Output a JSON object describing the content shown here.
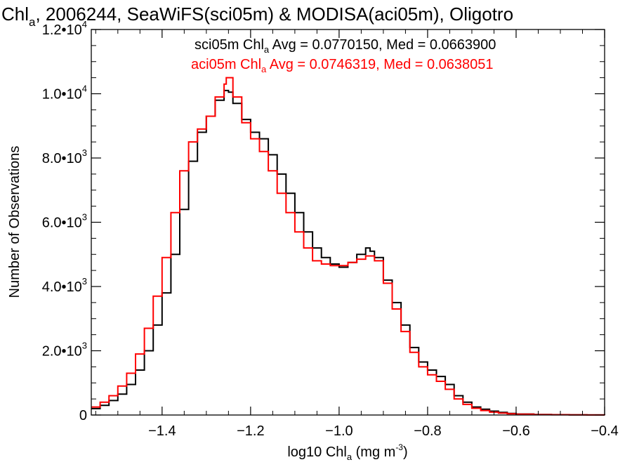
{
  "chart_data": {
    "type": "line",
    "title": {
      "prefix": "Chl",
      "sub": "a",
      "suffix": ", 2006244, SeaWiFS(sci05m) & MODISA(aci05m), Oligotro"
    },
    "xlabel": {
      "prefix": "log10 Chl",
      "sub": "a",
      "mid": " (mg m",
      "sup": "-3",
      "suffix": ")"
    },
    "ylabel": "Number of Observations",
    "xlim": [
      -1.56,
      -0.4
    ],
    "ylim": [
      0,
      12000
    ],
    "x_ticks": [
      -1.4,
      -1.2,
      -1.0,
      -0.8,
      -0.6,
      -0.4
    ],
    "x_tick_labels": [
      "−1.4",
      "−1.2",
      "−1.0",
      "−0.8",
      "−0.6",
      "−0.4"
    ],
    "y_ticks": [
      {
        "value": 0,
        "mant": "0",
        "exp": ""
      },
      {
        "value": 2000,
        "mant": "2.0•10",
        "exp": "3"
      },
      {
        "value": 4000,
        "mant": "4.0•10",
        "exp": "3"
      },
      {
        "value": 6000,
        "mant": "6.0•10",
        "exp": "3"
      },
      {
        "value": 8000,
        "mant": "8.0•10",
        "exp": "3"
      },
      {
        "value": 10000,
        "mant": "1.0•10",
        "exp": "4"
      },
      {
        "value": 12000,
        "mant": "1.2•10",
        "exp": "4"
      }
    ],
    "legend_placement": "top-right",
    "grid": false,
    "series": [
      {
        "legend_prefix": "sci05m Chl",
        "legend_sub": "a",
        "legend_suffix": " Avg = 0.0770150, Med = 0.0663900",
        "color": "#000000",
        "x": [
          -1.56,
          -1.54,
          -1.52,
          -1.5,
          -1.48,
          -1.46,
          -1.44,
          -1.42,
          -1.4,
          -1.38,
          -1.36,
          -1.34,
          -1.32,
          -1.3,
          -1.28,
          -1.26,
          -1.25,
          -1.24,
          -1.22,
          -1.2,
          -1.18,
          -1.16,
          -1.14,
          -1.12,
          -1.1,
          -1.08,
          -1.06,
          -1.04,
          -1.02,
          -1.0,
          -0.98,
          -0.96,
          -0.94,
          -0.93,
          -0.92,
          -0.9,
          -0.88,
          -0.86,
          -0.84,
          -0.82,
          -0.8,
          -0.78,
          -0.76,
          -0.74,
          -0.72,
          -0.7,
          -0.68,
          -0.66,
          -0.64,
          -0.62,
          -0.6,
          -0.56,
          -0.52,
          -0.48,
          -0.44,
          -0.4
        ],
        "values": [
          200,
          300,
          450,
          650,
          950,
          1400,
          2000,
          2800,
          3800,
          5000,
          6400,
          7900,
          8800,
          9300,
          9800,
          10100,
          10050,
          9700,
          9200,
          8800,
          8600,
          8100,
          7500,
          6900,
          6300,
          5700,
          5200,
          4900,
          4700,
          4600,
          4750,
          5000,
          5200,
          5100,
          4900,
          4200,
          3500,
          2800,
          2100,
          1650,
          1400,
          1200,
          950,
          600,
          400,
          250,
          180,
          120,
          80,
          50,
          30,
          15,
          10,
          5,
          3,
          0
        ]
      },
      {
        "legend_prefix": "aci05m Chl",
        "legend_sub": "a",
        "legend_suffix": " Avg = 0.0746319, Med = 0.0638051",
        "color": "#ff0000",
        "x": [
          -1.56,
          -1.54,
          -1.52,
          -1.5,
          -1.48,
          -1.46,
          -1.44,
          -1.42,
          -1.4,
          -1.38,
          -1.36,
          -1.34,
          -1.32,
          -1.3,
          -1.28,
          -1.26,
          -1.255,
          -1.24,
          -1.22,
          -1.2,
          -1.18,
          -1.16,
          -1.14,
          -1.12,
          -1.1,
          -1.08,
          -1.06,
          -1.04,
          -1.02,
          -1.0,
          -0.98,
          -0.96,
          -0.94,
          -0.92,
          -0.9,
          -0.88,
          -0.86,
          -0.84,
          -0.82,
          -0.8,
          -0.78,
          -0.76,
          -0.74,
          -0.72,
          -0.7,
          -0.68,
          -0.66,
          -0.64,
          -0.62,
          -0.6,
          -0.56,
          -0.52,
          -0.48,
          -0.44,
          -0.4
        ],
        "values": [
          250,
          400,
          600,
          900,
          1300,
          1900,
          2700,
          3700,
          4900,
          6300,
          7600,
          8500,
          8900,
          9300,
          9900,
          10300,
          10500,
          9900,
          9100,
          8600,
          8200,
          7600,
          6900,
          6300,
          5700,
          5200,
          4800,
          4700,
          4650,
          4650,
          4750,
          4850,
          4950,
          4800,
          4100,
          3300,
          2600,
          1950,
          1500,
          1250,
          1050,
          800,
          500,
          330,
          210,
          140,
          90,
          60,
          40,
          25,
          12,
          8,
          4,
          2,
          0
        ]
      }
    ]
  }
}
